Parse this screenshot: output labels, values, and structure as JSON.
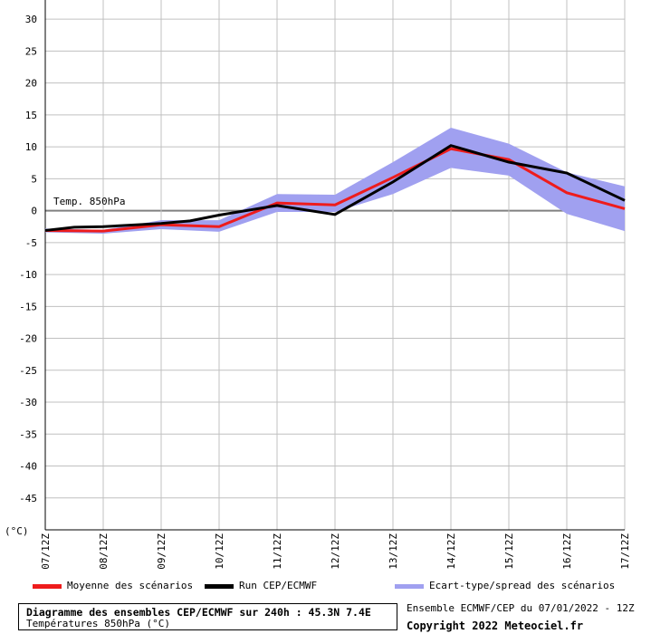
{
  "chart_data": {
    "type": "line",
    "y_unit_label": "(°C)",
    "ylim": [
      -50,
      33
    ],
    "y_ticks": [
      30,
      25,
      20,
      15,
      10,
      5,
      0,
      -5,
      -10,
      -15,
      -20,
      -25,
      -30,
      -35,
      -40,
      -45
    ],
    "categories": [
      "07/12Z",
      "08/12Z",
      "09/12Z",
      "10/12Z",
      "11/12Z",
      "12/12Z",
      "13/12Z",
      "14/12Z",
      "15/12Z",
      "16/12Z",
      "17/12Z"
    ],
    "annotation": "Temp. 850hPa",
    "grid": true,
    "series": [
      {
        "name": "Ecart-type/spread des scénarios",
        "kind": "band",
        "color": "#a0a0f0",
        "upper": [
          -2.8,
          -3.0,
          -1.5,
          -1.5,
          2.6,
          2.5,
          7.6,
          13.0,
          10.5,
          6.0,
          3.8
        ],
        "lower": [
          -3.4,
          -3.6,
          -2.9,
          -3.3,
          -0.2,
          -0.2,
          2.6,
          6.7,
          5.5,
          -0.5,
          -3.2
        ]
      },
      {
        "name": "Moyenne des scénarios",
        "kind": "line",
        "color": "#ee1c1c",
        "x": [
          0,
          1,
          2,
          3,
          4,
          5,
          6,
          7,
          8,
          9,
          10
        ],
        "values": [
          -3.1,
          -3.2,
          -2.2,
          -2.5,
          1.2,
          0.9,
          5.2,
          9.7,
          8.0,
          2.8,
          0.3
        ]
      },
      {
        "name": "Run CEP/ECMWF",
        "kind": "line",
        "color": "#000000",
        "x": [
          0,
          0.5,
          1,
          2,
          2.5,
          3,
          4,
          5,
          6,
          7,
          8,
          9,
          10
        ],
        "values": [
          -3.1,
          -2.6,
          -2.5,
          -2.0,
          -1.6,
          -0.7,
          0.8,
          -0.6,
          4.5,
          10.2,
          7.6,
          5.9,
          1.6
        ]
      }
    ]
  },
  "legend": {
    "mean_label": "Moyenne des scénarios",
    "run_label": "Run CEP/ECMWF",
    "spread_label": "Ecart-type/spread des scénarios"
  },
  "footer": {
    "title": "Diagramme des ensembles CEP/ECMWF sur 240h : 45.3N 7.4E",
    "subtitle": "Températures 850hPa (°C)",
    "run_info": "Ensemble ECMWF/CEP du 07/01/2022 - 12Z",
    "copyright": "Copyright 2022 Meteociel.fr"
  },
  "colors": {
    "mean": "#ee1c1c",
    "run": "#000000",
    "spread": "#a0a0f0",
    "grid": "#c0c0c0",
    "zero_line": "#808080"
  }
}
